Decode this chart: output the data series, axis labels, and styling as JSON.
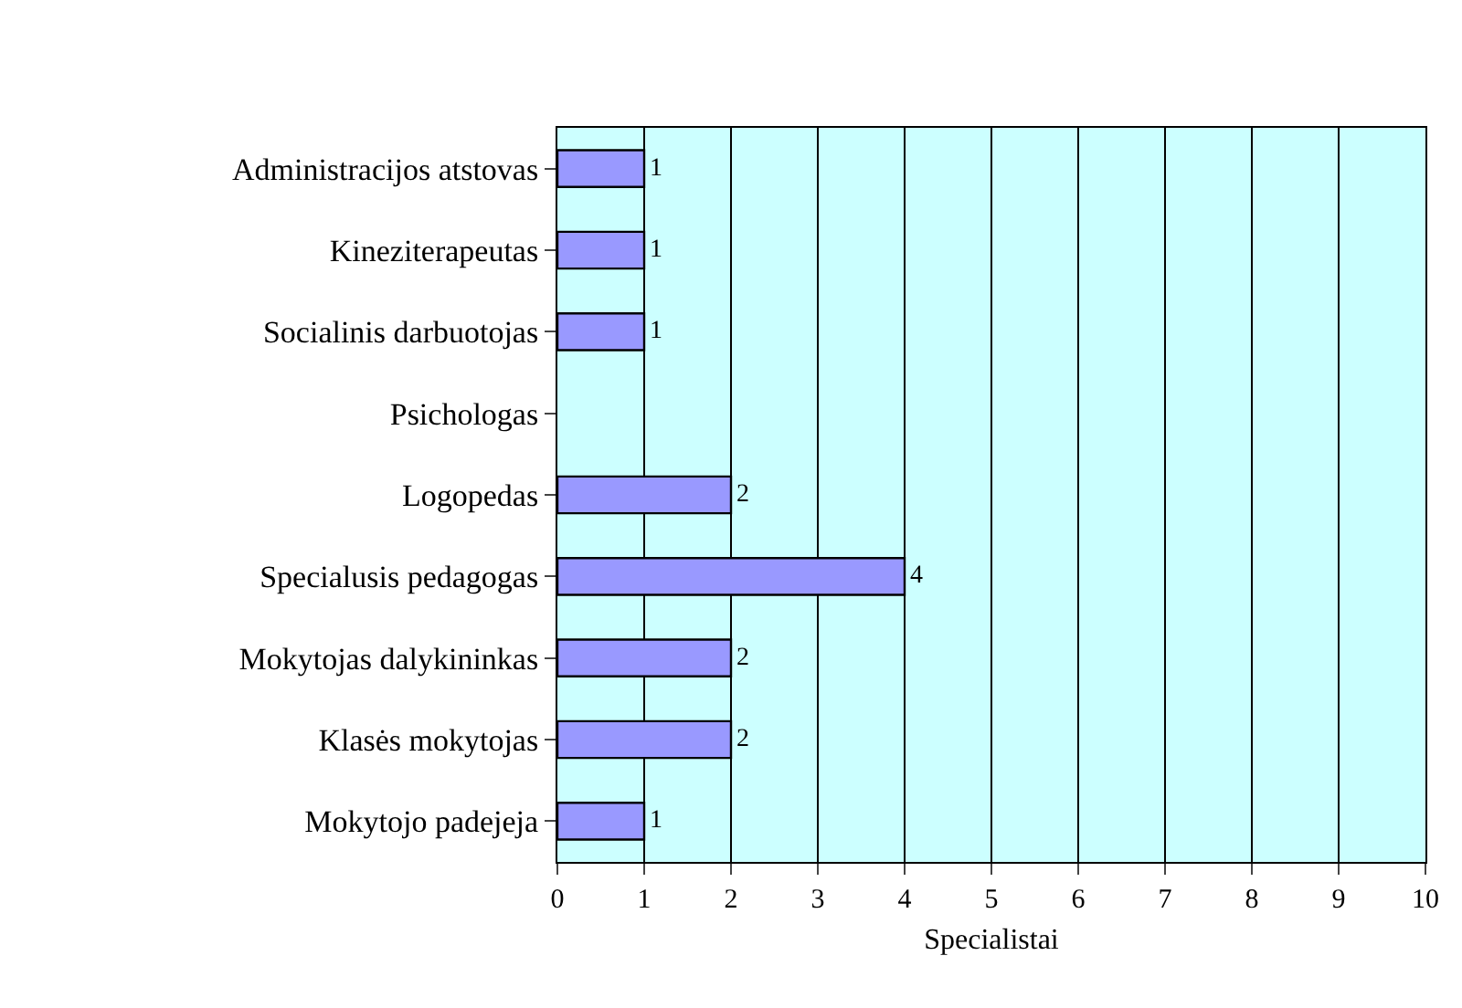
{
  "chart_data": {
    "type": "bar",
    "orientation": "horizontal",
    "categories": [
      "Administracijos atstovas",
      "Kineziterapeutas",
      "Socialinis darbuotojas",
      "Psichologas",
      "Logopedas",
      "Specialusis pedagogas",
      "Mokytojas dalykininkas",
      "Klasės mokytojas",
      "Mokytojo padejeja"
    ],
    "values": [
      1,
      1,
      1,
      null,
      2,
      4,
      2,
      2,
      1
    ],
    "value_labels": [
      "1",
      "1",
      "1",
      null,
      "2",
      "4",
      "2",
      "2",
      "1"
    ],
    "color": "#9999ff",
    "xlim": [
      0,
      10
    ],
    "xticks": [
      0,
      1,
      2,
      3,
      4,
      5,
      6,
      7,
      8,
      9,
      10
    ],
    "xlabel": "Specialistai",
    "grid": "x"
  }
}
